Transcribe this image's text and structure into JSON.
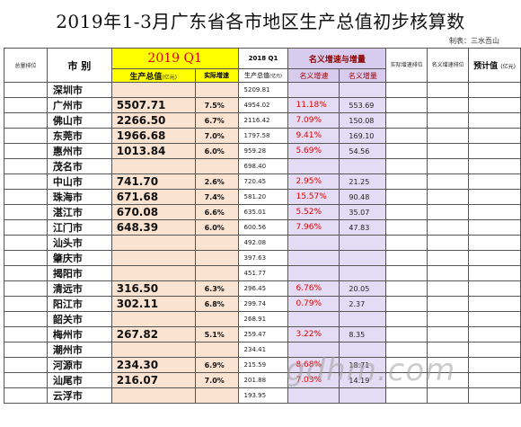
{
  "title": "2019年1-3月广东省各市地区生产总值初步核算数",
  "author": "制表：三水吾山",
  "headers": {
    "rank": "总量排位",
    "city": "市 别",
    "period_2019": "2019 Q1",
    "gdp": "生产总值",
    "gdp_unit": "(亿元)",
    "real_growth": "实际增速",
    "period_2018": "2018 Q1",
    "gdp_2018": "生产总值",
    "gdp_2018_unit": "(亿元)",
    "nominal_group": "名义增速与增量",
    "nominal_rate": "名义增速",
    "nominal_increase": "名义增量",
    "real_rank": "实际增速排位",
    "nominal_rank": "名义增速排位",
    "forecast": "预计值",
    "forecast_unit": "(亿元)"
  },
  "rows": [
    {
      "city": "深圳市",
      "gdp": "",
      "rate": "",
      "gdp2018": "5209.81",
      "nom_rate": "",
      "nom_inc": ""
    },
    {
      "city": "广州市",
      "gdp": "5507.71",
      "rate": "7.5%",
      "gdp2018": "4954.02",
      "nom_rate": "11.18%",
      "nom_inc": "553.69"
    },
    {
      "city": "佛山市",
      "gdp": "2266.50",
      "rate": "6.7%",
      "gdp2018": "2116.42",
      "nom_rate": "7.09%",
      "nom_inc": "150.08"
    },
    {
      "city": "东莞市",
      "gdp": "1966.68",
      "rate": "7.0%",
      "gdp2018": "1797.58",
      "nom_rate": "9.41%",
      "nom_inc": "169.10"
    },
    {
      "city": "惠州市",
      "gdp": "1013.84",
      "rate": "6.0%",
      "gdp2018": "959.28",
      "nom_rate": "5.69%",
      "nom_inc": "54.56"
    },
    {
      "city": "茂名市",
      "gdp": "",
      "rate": "",
      "gdp2018": "698.40",
      "nom_rate": "",
      "nom_inc": ""
    },
    {
      "city": "中山市",
      "gdp": "741.70",
      "rate": "2.6%",
      "gdp2018": "720.45",
      "nom_rate": "2.95%",
      "nom_inc": "21.25"
    },
    {
      "city": "珠海市",
      "gdp": "671.68",
      "rate": "7.4%",
      "gdp2018": "581.20",
      "nom_rate": "15.57%",
      "nom_inc": "90.48"
    },
    {
      "city": "湛江市",
      "gdp": "670.08",
      "rate": "6.6%",
      "gdp2018": "635.01",
      "nom_rate": "5.52%",
      "nom_inc": "35.07"
    },
    {
      "city": "江门市",
      "gdp": "648.39",
      "rate": "6.0%",
      "gdp2018": "600.56",
      "nom_rate": "7.96%",
      "nom_inc": "47.83"
    },
    {
      "city": "汕头市",
      "gdp": "",
      "rate": "",
      "gdp2018": "492.08",
      "nom_rate": "",
      "nom_inc": ""
    },
    {
      "city": "肇庆市",
      "gdp": "",
      "rate": "",
      "gdp2018": "397.63",
      "nom_rate": "",
      "nom_inc": ""
    },
    {
      "city": "揭阳市",
      "gdp": "",
      "rate": "",
      "gdp2018": "451.77",
      "nom_rate": "",
      "nom_inc": ""
    },
    {
      "city": "清远市",
      "gdp": "316.50",
      "rate": "6.3%",
      "gdp2018": "296.45",
      "nom_rate": "6.76%",
      "nom_inc": "20.05"
    },
    {
      "city": "阳江市",
      "gdp": "302.11",
      "rate": "6.8%",
      "gdp2018": "299.74",
      "nom_rate": "0.79%",
      "nom_inc": "2.37"
    },
    {
      "city": "韶关市",
      "gdp": "",
      "rate": "",
      "gdp2018": "268.91",
      "nom_rate": "",
      "nom_inc": ""
    },
    {
      "city": "梅州市",
      "gdp": "267.82",
      "rate": "5.1%",
      "gdp2018": "259.47",
      "nom_rate": "3.22%",
      "nom_inc": "8.35"
    },
    {
      "city": "潮州市",
      "gdp": "",
      "rate": "",
      "gdp2018": "234.41",
      "nom_rate": "",
      "nom_inc": ""
    },
    {
      "city": "河源市",
      "gdp": "234.30",
      "rate": "6.9%",
      "gdp2018": "215.59",
      "nom_rate": "8.68%",
      "nom_inc": "18.71"
    },
    {
      "city": "汕尾市",
      "gdp": "216.07",
      "rate": "7.0%",
      "gdp2018": "201.88",
      "nom_rate": "7.03%",
      "nom_inc": "14.19"
    },
    {
      "city": "云浮市",
      "gdp": "",
      "rate": "",
      "gdp2018": "193.95",
      "nom_rate": "",
      "nom_inc": ""
    }
  ],
  "watermark": "gdhm.com"
}
